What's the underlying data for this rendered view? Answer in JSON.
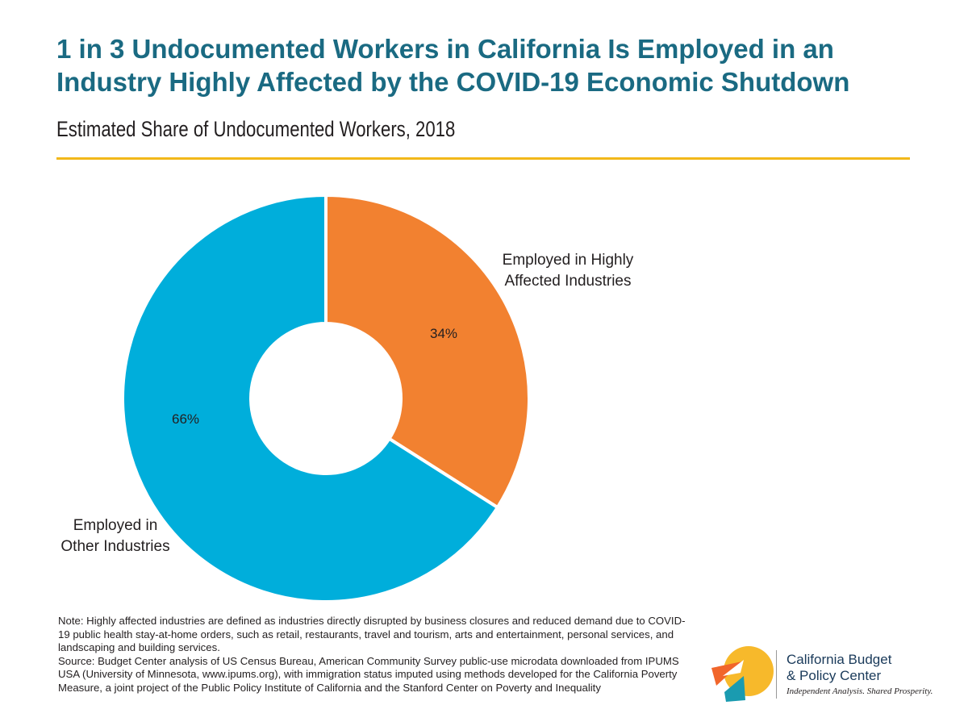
{
  "header": {
    "title": "1 in 3 Undocumented Workers in California Is Employed in an Industry Highly Affected by the COVID-19 Economic Shutdown",
    "subtitle": "Estimated Share of Undocumented Workers, 2018"
  },
  "chart_data": {
    "type": "pie",
    "donut": true,
    "slices": [
      {
        "label_lines": [
          "Employed in Highly",
          "Affected Industries"
        ],
        "value": 34,
        "value_label": "34%",
        "color": "#f28130"
      },
      {
        "label_lines": [
          "Employed in",
          "Other Industries"
        ],
        "value": 66,
        "value_label": "66%",
        "color": "#00aedb"
      }
    ]
  },
  "footer": {
    "note": "Note: Highly affected industries are defined as industries directly disrupted by business closures and reduced demand due to COVID-19 public health stay-at-home orders, such as retail, restaurants, travel and tourism, arts and entertainment, personal services, and landscaping and building services.",
    "source": "Source: Budget Center analysis of US Census Bureau, American Community Survey public-use microdata downloaded from IPUMS USA (University of Minnesota, www.ipums.org), with immigration status imputed using methods developed for the California Poverty Measure, a joint project of the Public Policy Institute of California and the Stanford Center on Poverty and Inequality"
  },
  "logo": {
    "name_line1": "California Budget",
    "name_line2": "& Policy Center",
    "tagline": "Independent Analysis. Shared Prosperity.",
    "colors": {
      "yellow": "#f7b92b",
      "orange": "#f1662b",
      "teal": "#1a9bb0"
    }
  }
}
